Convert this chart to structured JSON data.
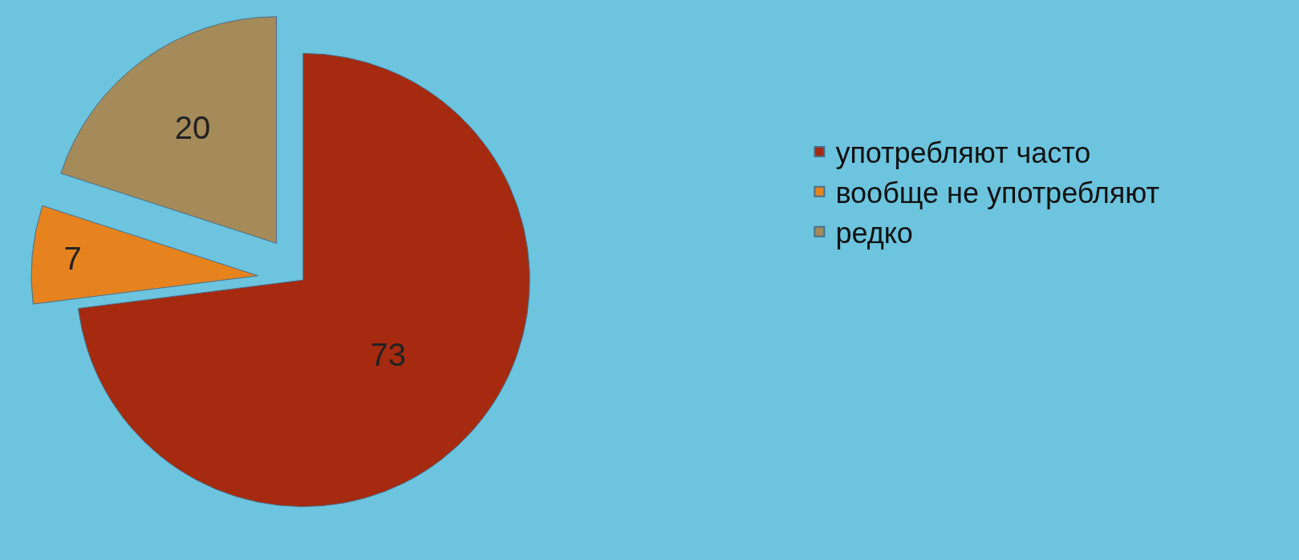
{
  "chart_data": {
    "type": "pie",
    "categories": [
      "употребляют часто",
      "вообще не употребляют",
      "редко"
    ],
    "values": [
      73,
      7,
      20
    ],
    "colors": [
      "#a52a0f",
      "#e6831e",
      "#a58a5a"
    ],
    "data_labels": true,
    "legend": "right"
  }
}
